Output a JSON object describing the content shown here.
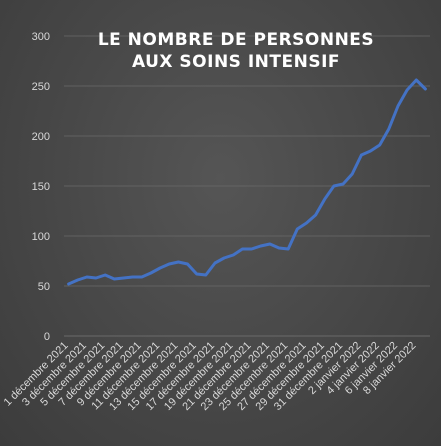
{
  "chart_data": {
    "type": "line",
    "title_lines": [
      "LE NOMBRE DE PERSONNES",
      "AUX SOINS INTENSIF"
    ],
    "xlabel": "",
    "ylabel": "",
    "ylim": [
      0,
      300
    ],
    "yticks": [
      0,
      50,
      100,
      150,
      200,
      250,
      300
    ],
    "grid": true,
    "x_labels": [
      "1 décembre 2021",
      "3 décembre 2021",
      "5 décembre 2021",
      "7 décembre 2021",
      "9 décembre 2021",
      "11 décembre 2021",
      "13 décembre 2021",
      "15 décembre 2021",
      "17 décembre 2021",
      "19 décembre 2021",
      "21 décembre 2021",
      "23 décembre 2021",
      "25 décembre 2021",
      "27 décembre 2021",
      "29 décembre 2021",
      "31 décembre 2021",
      "2 janvier 2022",
      "4 janvier 2022",
      "6 janvier 2022",
      "8 janvier 2022"
    ],
    "x": [
      "1 décembre 2021",
      "2 décembre 2021",
      "3 décembre 2021",
      "4 décembre 2021",
      "5 décembre 2021",
      "6 décembre 2021",
      "7 décembre 2021",
      "8 décembre 2021",
      "9 décembre 2021",
      "10 décembre 2021",
      "11 décembre 2021",
      "12 décembre 2021",
      "13 décembre 2021",
      "14 décembre 2021",
      "15 décembre 2021",
      "16 décembre 2021",
      "17 décembre 2021",
      "18 décembre 2021",
      "19 décembre 2021",
      "20 décembre 2021",
      "21 décembre 2021",
      "22 décembre 2021",
      "23 décembre 2021",
      "24 décembre 2021",
      "25 décembre 2021",
      "26 décembre 2021",
      "27 décembre 2021",
      "28 décembre 2021",
      "29 décembre 2021",
      "30 décembre 2021",
      "31 décembre 2021",
      "1 janvier 2022",
      "2 janvier 2022",
      "3 janvier 2022",
      "4 janvier 2022",
      "5 janvier 2022",
      "6 janvier 2022",
      "7 janvier 2022",
      "8 janvier 2022",
      "9 janvier 2022"
    ],
    "series": [
      {
        "values": [
          52,
          56,
          59,
          58,
          61,
          57,
          58,
          59,
          59,
          63,
          68,
          72,
          74,
          72,
          62,
          61,
          73,
          78,
          81,
          87,
          87,
          90,
          92,
          88,
          87,
          107,
          113,
          121,
          137,
          150,
          152,
          162,
          181,
          185,
          191,
          207,
          230,
          246,
          256,
          247
        ],
        "color": "#4472C4"
      }
    ]
  },
  "colors": {
    "background": "#474747",
    "line": "#4472C4",
    "grid": "#6a6a6a",
    "text": "#d9d9d9",
    "title": "#ffffff"
  }
}
